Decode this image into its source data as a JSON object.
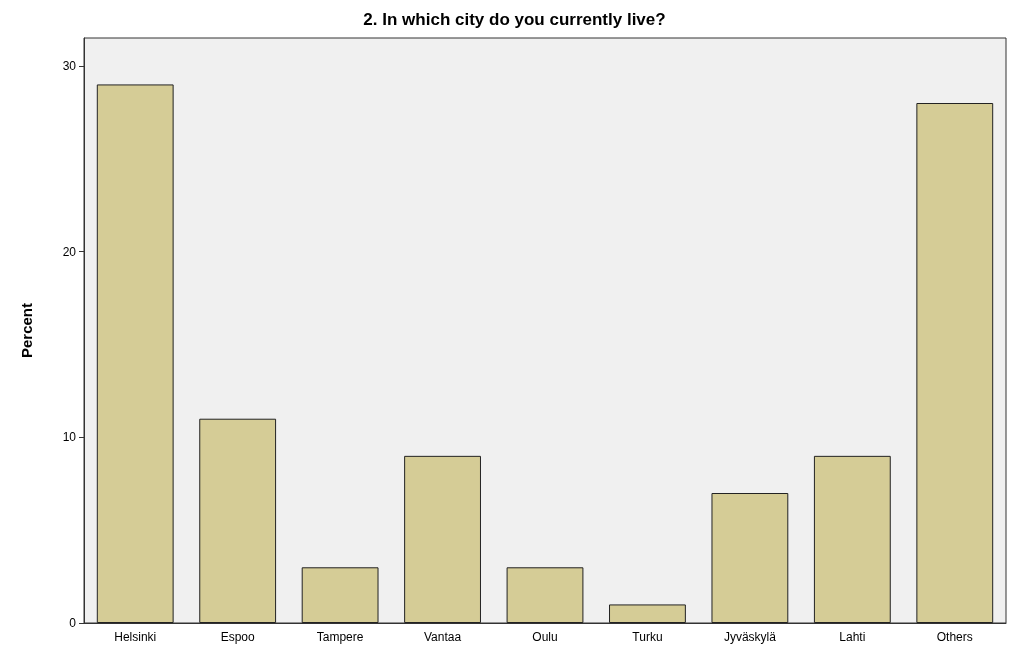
{
  "chart_data": {
    "type": "bar",
    "title": "2. In which city do you currently live?",
    "ylabel": "Percent",
    "categories": [
      "Helsinki",
      "Espoo",
      "Tampere",
      "Vantaa",
      "Oulu",
      "Turku",
      "Jyväskylä",
      "Lahti",
      "Others"
    ],
    "values": [
      29,
      11,
      3,
      9,
      3,
      1,
      7,
      9,
      28
    ],
    "color": "#d5cc96",
    "ylim": [
      0,
      31.5
    ],
    "yticks": [
      0,
      10,
      20,
      30
    ],
    "grid": false
  }
}
